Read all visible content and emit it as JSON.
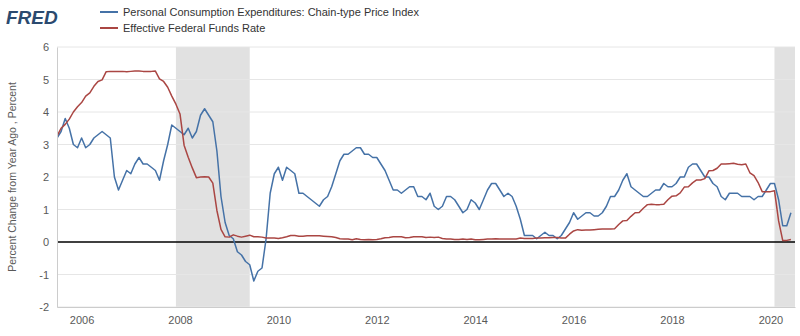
{
  "chart_data": {
    "type": "line",
    "logo": "FRED",
    "y_label": "Percent Change from Year Ago , Percent",
    "legend": "top",
    "grid": true,
    "xlim": [
      2005.5,
      2020.5
    ],
    "xticks": [
      2006,
      2008,
      2010,
      2012,
      2014,
      2016,
      2018,
      2020
    ],
    "ylim": [
      -2,
      6
    ],
    "yticks": [
      -2,
      -1,
      0,
      1,
      2,
      3,
      4,
      5,
      6
    ],
    "recessions": [
      {
        "start": 2007.917,
        "end": 2009.417
      },
      {
        "start": 2020.083,
        "end": 2020.5
      }
    ],
    "x": [
      2005.5,
      2005.583,
      2005.667,
      2005.75,
      2005.833,
      2005.917,
      2006,
      2006.083,
      2006.167,
      2006.25,
      2006.333,
      2006.417,
      2006.5,
      2006.583,
      2006.667,
      2006.75,
      2006.833,
      2006.917,
      2007,
      2007.083,
      2007.167,
      2007.25,
      2007.333,
      2007.417,
      2007.5,
      2007.583,
      2007.667,
      2007.75,
      2007.833,
      2007.917,
      2008,
      2008.083,
      2008.167,
      2008.25,
      2008.333,
      2008.417,
      2008.5,
      2008.583,
      2008.667,
      2008.75,
      2008.833,
      2008.917,
      2009,
      2009.083,
      2009.167,
      2009.25,
      2009.333,
      2009.417,
      2009.5,
      2009.583,
      2009.667,
      2009.75,
      2009.833,
      2009.917,
      2010,
      2010.083,
      2010.167,
      2010.25,
      2010.333,
      2010.417,
      2010.5,
      2010.583,
      2010.667,
      2010.75,
      2010.833,
      2010.917,
      2011,
      2011.083,
      2011.167,
      2011.25,
      2011.333,
      2011.417,
      2011.5,
      2011.583,
      2011.667,
      2011.75,
      2011.833,
      2011.917,
      2012,
      2012.083,
      2012.167,
      2012.25,
      2012.333,
      2012.417,
      2012.5,
      2012.583,
      2012.667,
      2012.75,
      2012.833,
      2012.917,
      2013,
      2013.083,
      2013.167,
      2013.25,
      2013.333,
      2013.417,
      2013.5,
      2013.583,
      2013.667,
      2013.75,
      2013.833,
      2013.917,
      2014,
      2014.083,
      2014.167,
      2014.25,
      2014.333,
      2014.417,
      2014.5,
      2014.583,
      2014.667,
      2014.75,
      2014.833,
      2014.917,
      2015,
      2015.083,
      2015.167,
      2015.25,
      2015.333,
      2015.417,
      2015.5,
      2015.583,
      2015.667,
      2015.75,
      2015.833,
      2015.917,
      2016,
      2016.083,
      2016.167,
      2016.25,
      2016.333,
      2016.417,
      2016.5,
      2016.583,
      2016.667,
      2016.75,
      2016.833,
      2016.917,
      2017,
      2017.083,
      2017.167,
      2017.25,
      2017.333,
      2017.417,
      2017.5,
      2017.583,
      2017.667,
      2017.75,
      2017.833,
      2017.917,
      2018,
      2018.083,
      2018.167,
      2018.25,
      2018.333,
      2018.417,
      2018.5,
      2018.583,
      2018.667,
      2018.75,
      2018.833,
      2018.917,
      2019,
      2019.083,
      2019.167,
      2019.25,
      2019.333,
      2019.417,
      2019.5,
      2019.583,
      2019.667,
      2019.75,
      2019.833,
      2019.917,
      2020,
      2020.083,
      2020.167,
      2020.25,
      2020.333,
      2020.417
    ],
    "series": [
      {
        "name": "Personal Consumption Expenditures: Chain-type Price Index",
        "color": "#4572a7",
        "values": [
          3.2,
          3.4,
          3.8,
          3.5,
          3.0,
          2.9,
          3.2,
          2.9,
          3.0,
          3.2,
          3.3,
          3.4,
          3.3,
          3.2,
          2.0,
          1.6,
          1.9,
          2.2,
          2.1,
          2.4,
          2.6,
          2.4,
          2.4,
          2.3,
          2.2,
          1.9,
          2.5,
          3.0,
          3.6,
          3.5,
          3.4,
          3.3,
          3.5,
          3.2,
          3.4,
          3.9,
          4.1,
          3.9,
          3.7,
          2.8,
          1.4,
          0.6,
          0.2,
          0.1,
          -0.3,
          -0.4,
          -0.6,
          -0.7,
          -1.2,
          -0.9,
          -0.8,
          0.1,
          1.5,
          2.1,
          2.3,
          1.9,
          2.3,
          2.2,
          2.1,
          1.5,
          1.5,
          1.4,
          1.3,
          1.2,
          1.1,
          1.3,
          1.4,
          1.7,
          2.1,
          2.5,
          2.7,
          2.7,
          2.8,
          2.9,
          2.9,
          2.7,
          2.7,
          2.6,
          2.6,
          2.4,
          2.2,
          1.9,
          1.6,
          1.6,
          1.5,
          1.6,
          1.7,
          1.7,
          1.4,
          1.4,
          1.3,
          1.5,
          1.1,
          1.0,
          1.1,
          1.4,
          1.4,
          1.3,
          1.1,
          0.9,
          1.0,
          1.3,
          1.2,
          1.0,
          1.3,
          1.6,
          1.8,
          1.8,
          1.6,
          1.4,
          1.5,
          1.4,
          1.1,
          0.7,
          0.2,
          0.2,
          0.2,
          0.1,
          0.2,
          0.3,
          0.2,
          0.2,
          0.1,
          0.2,
          0.4,
          0.6,
          0.9,
          0.7,
          0.8,
          0.9,
          0.9,
          0.8,
          0.8,
          0.9,
          1.1,
          1.4,
          1.4,
          1.6,
          1.9,
          2.1,
          1.7,
          1.6,
          1.5,
          1.4,
          1.4,
          1.5,
          1.6,
          1.6,
          1.8,
          1.7,
          1.7,
          1.8,
          2.0,
          2.0,
          2.3,
          2.4,
          2.4,
          2.2,
          2.0,
          2.0,
          1.8,
          1.7,
          1.4,
          1.3,
          1.5,
          1.5,
          1.5,
          1.4,
          1.4,
          1.4,
          1.3,
          1.4,
          1.4,
          1.6,
          1.8,
          1.8,
          1.3,
          0.5,
          0.5,
          0.9
        ]
      },
      {
        "name": "Effective Federal Funds Rate",
        "color": "#aa4643",
        "values": [
          3.26,
          3.5,
          3.62,
          3.78,
          4.0,
          4.16,
          4.29,
          4.49,
          4.59,
          4.79,
          4.94,
          4.99,
          5.24,
          5.25,
          5.25,
          5.25,
          5.25,
          5.24,
          5.25,
          5.26,
          5.26,
          5.25,
          5.25,
          5.25,
          5.26,
          5.02,
          4.94,
          4.76,
          4.49,
          4.24,
          3.94,
          2.98,
          2.61,
          2.28,
          1.98,
          2.0,
          2.01,
          2.0,
          1.81,
          0.97,
          0.39,
          0.16,
          0.15,
          0.22,
          0.18,
          0.15,
          0.18,
          0.21,
          0.16,
          0.16,
          0.15,
          0.12,
          0.12,
          0.12,
          0.11,
          0.13,
          0.16,
          0.2,
          0.2,
          0.18,
          0.18,
          0.19,
          0.19,
          0.19,
          0.19,
          0.18,
          0.17,
          0.16,
          0.14,
          0.1,
          0.09,
          0.09,
          0.07,
          0.1,
          0.08,
          0.07,
          0.08,
          0.07,
          0.08,
          0.1,
          0.13,
          0.14,
          0.16,
          0.16,
          0.16,
          0.13,
          0.14,
          0.16,
          0.16,
          0.16,
          0.14,
          0.15,
          0.14,
          0.15,
          0.11,
          0.09,
          0.09,
          0.08,
          0.08,
          0.09,
          0.08,
          0.09,
          0.07,
          0.07,
          0.08,
          0.09,
          0.09,
          0.1,
          0.09,
          0.09,
          0.09,
          0.09,
          0.09,
          0.12,
          0.11,
          0.11,
          0.11,
          0.12,
          0.12,
          0.13,
          0.13,
          0.14,
          0.14,
          0.12,
          0.12,
          0.24,
          0.34,
          0.38,
          0.36,
          0.37,
          0.37,
          0.38,
          0.39,
          0.4,
          0.4,
          0.4,
          0.41,
          0.54,
          0.65,
          0.66,
          0.79,
          0.9,
          0.91,
          1.04,
          1.15,
          1.16,
          1.15,
          1.15,
          1.16,
          1.3,
          1.41,
          1.42,
          1.51,
          1.69,
          1.7,
          1.82,
          1.91,
          1.91,
          1.95,
          2.19,
          2.2,
          2.27,
          2.4,
          2.4,
          2.41,
          2.42,
          2.39,
          2.38,
          2.4,
          2.13,
          2.04,
          1.83,
          1.55,
          1.55,
          1.55,
          1.58,
          0.65,
          0.05,
          0.05,
          0.08
        ]
      }
    ]
  }
}
